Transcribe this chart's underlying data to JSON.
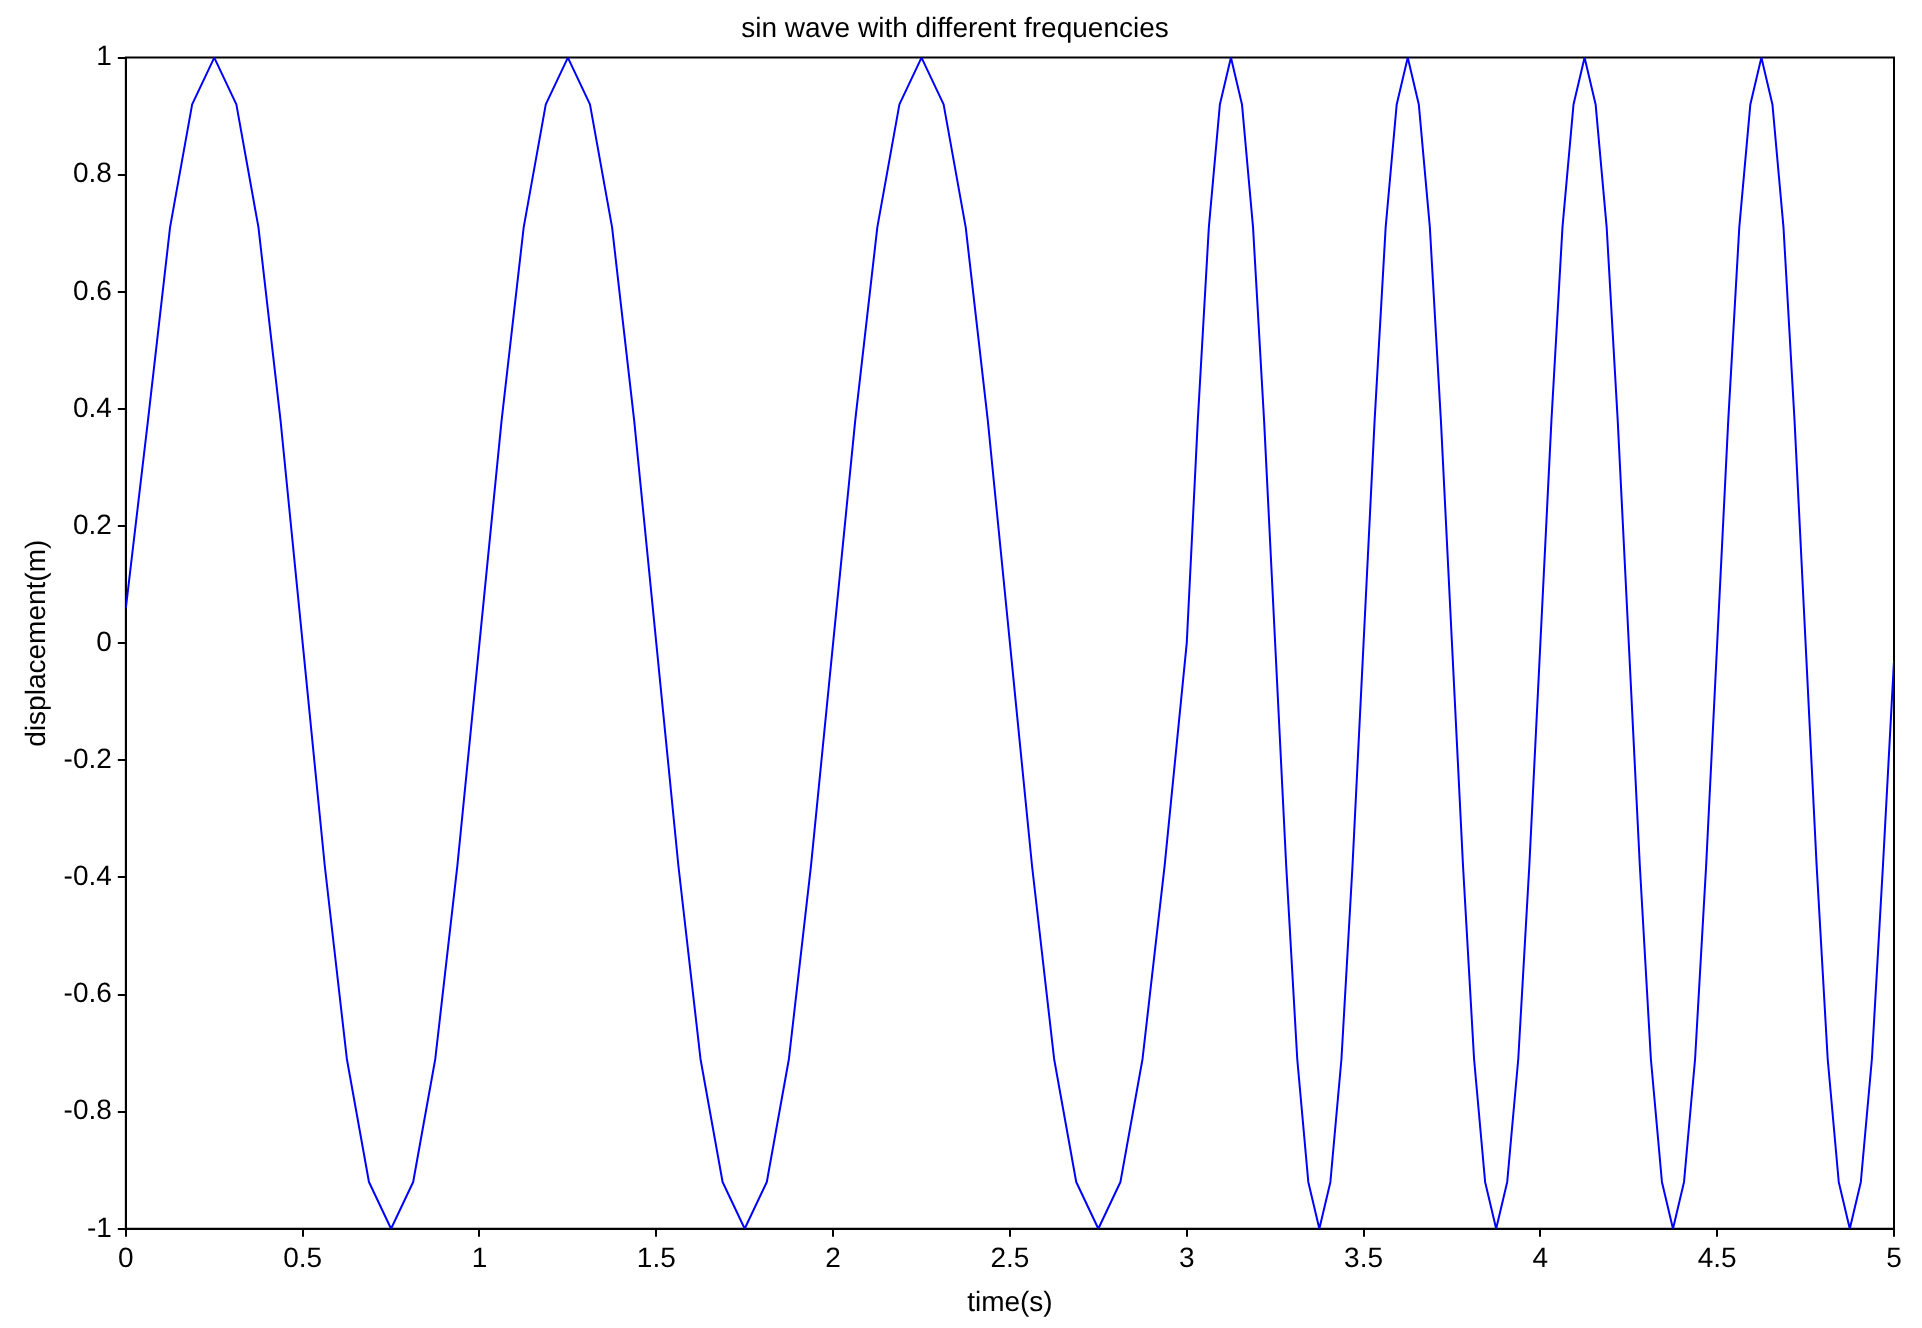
{
  "chart_data": {
    "type": "line",
    "title": "sin wave with different frequencies",
    "xlabel": "time(s)",
    "ylabel": "displacement(m)",
    "xlim": [
      0,
      5
    ],
    "xticks": [
      0,
      0.5,
      1,
      1.5,
      2,
      2.5,
      3,
      3.5,
      4,
      4.5,
      5
    ],
    "ylim": [
      -1,
      1
    ],
    "yticks": [
      -1,
      -0.8,
      -0.6,
      -0.4,
      -0.2,
      0,
      0.2,
      0.4,
      0.6,
      0.8,
      1
    ],
    "grid": false,
    "legend": false,
    "marker": "none",
    "line_style": "solid",
    "series": [
      {
        "color": "#0000ff",
        "x": [
          0,
          0.0625,
          0.125,
          0.1875,
          0.25,
          0.3125,
          0.375,
          0.4375,
          0.5,
          0.5625,
          0.625,
          0.6875,
          0.75,
          0.8125,
          0.875,
          0.9375,
          1,
          1.0625,
          1.125,
          1.1875,
          1.25,
          1.3125,
          1.375,
          1.4375,
          1.5,
          1.5625,
          1.625,
          1.6875,
          1.75,
          1.8125,
          1.875,
          1.9375,
          2,
          2.0625,
          2.125,
          2.1875,
          2.25,
          2.3125,
          2.375,
          2.4375,
          2.5,
          2.5625,
          2.625,
          2.6875,
          2.75,
          2.8125,
          2.875,
          2.9375,
          3,
          3.03125,
          3.0625,
          3.09375,
          3.125,
          3.15625,
          3.1875,
          3.21875,
          3.25,
          3.28125,
          3.3125,
          3.34375,
          3.375,
          3.40625,
          3.4375,
          3.46875,
          3.5,
          3.53125,
          3.5625,
          3.59375,
          3.625,
          3.65625,
          3.6875,
          3.71875,
          3.75,
          3.78125,
          3.8125,
          3.84375,
          3.875,
          3.90625,
          3.9375,
          3.96875,
          4,
          4.03125,
          4.0625,
          4.09375,
          4.125,
          4.15625,
          4.1875,
          4.21875,
          4.25,
          4.28125,
          4.3125,
          4.34375,
          4.375,
          4.40625,
          4.4375,
          4.46875,
          4.5,
          4.53125,
          4.5625,
          4.59375,
          4.625,
          4.65625,
          4.6875,
          4.71875,
          4.75,
          4.78125,
          4.8125,
          4.84375,
          4.875,
          4.90625,
          4.9375,
          4.96875,
          5
        ],
        "values": [
          0.06,
          0.38,
          0.71,
          0.92,
          1,
          0.92,
          0.71,
          0.38,
          0,
          -0.38,
          -0.71,
          -0.92,
          -1,
          -0.92,
          -0.71,
          -0.38,
          0,
          0.38,
          0.71,
          0.92,
          1,
          0.92,
          0.71,
          0.38,
          0,
          -0.38,
          -0.71,
          -0.92,
          -1,
          -0.92,
          -0.71,
          -0.38,
          0,
          0.38,
          0.71,
          0.92,
          1,
          0.92,
          0.71,
          0.38,
          0,
          -0.38,
          -0.71,
          -0.92,
          -1,
          -0.92,
          -0.71,
          -0.38,
          0,
          0.38,
          0.71,
          0.92,
          1,
          0.92,
          0.71,
          0.38,
          0,
          -0.38,
          -0.71,
          -0.92,
          -1,
          -0.92,
          -0.71,
          -0.38,
          0,
          0.38,
          0.71,
          0.92,
          1,
          0.92,
          0.71,
          0.38,
          0,
          -0.38,
          -0.71,
          -0.92,
          -1,
          -0.92,
          -0.71,
          -0.38,
          0,
          0.38,
          0.71,
          0.92,
          1,
          0.92,
          0.71,
          0.38,
          0,
          -0.38,
          -0.71,
          -0.92,
          -1,
          -0.92,
          -0.71,
          -0.38,
          0,
          0.38,
          0.71,
          0.92,
          1,
          0.92,
          0.71,
          0.38,
          0,
          -0.38,
          -0.71,
          -0.92,
          -1,
          -0.92,
          -0.71,
          -0.38,
          -0.03
        ]
      }
    ]
  }
}
